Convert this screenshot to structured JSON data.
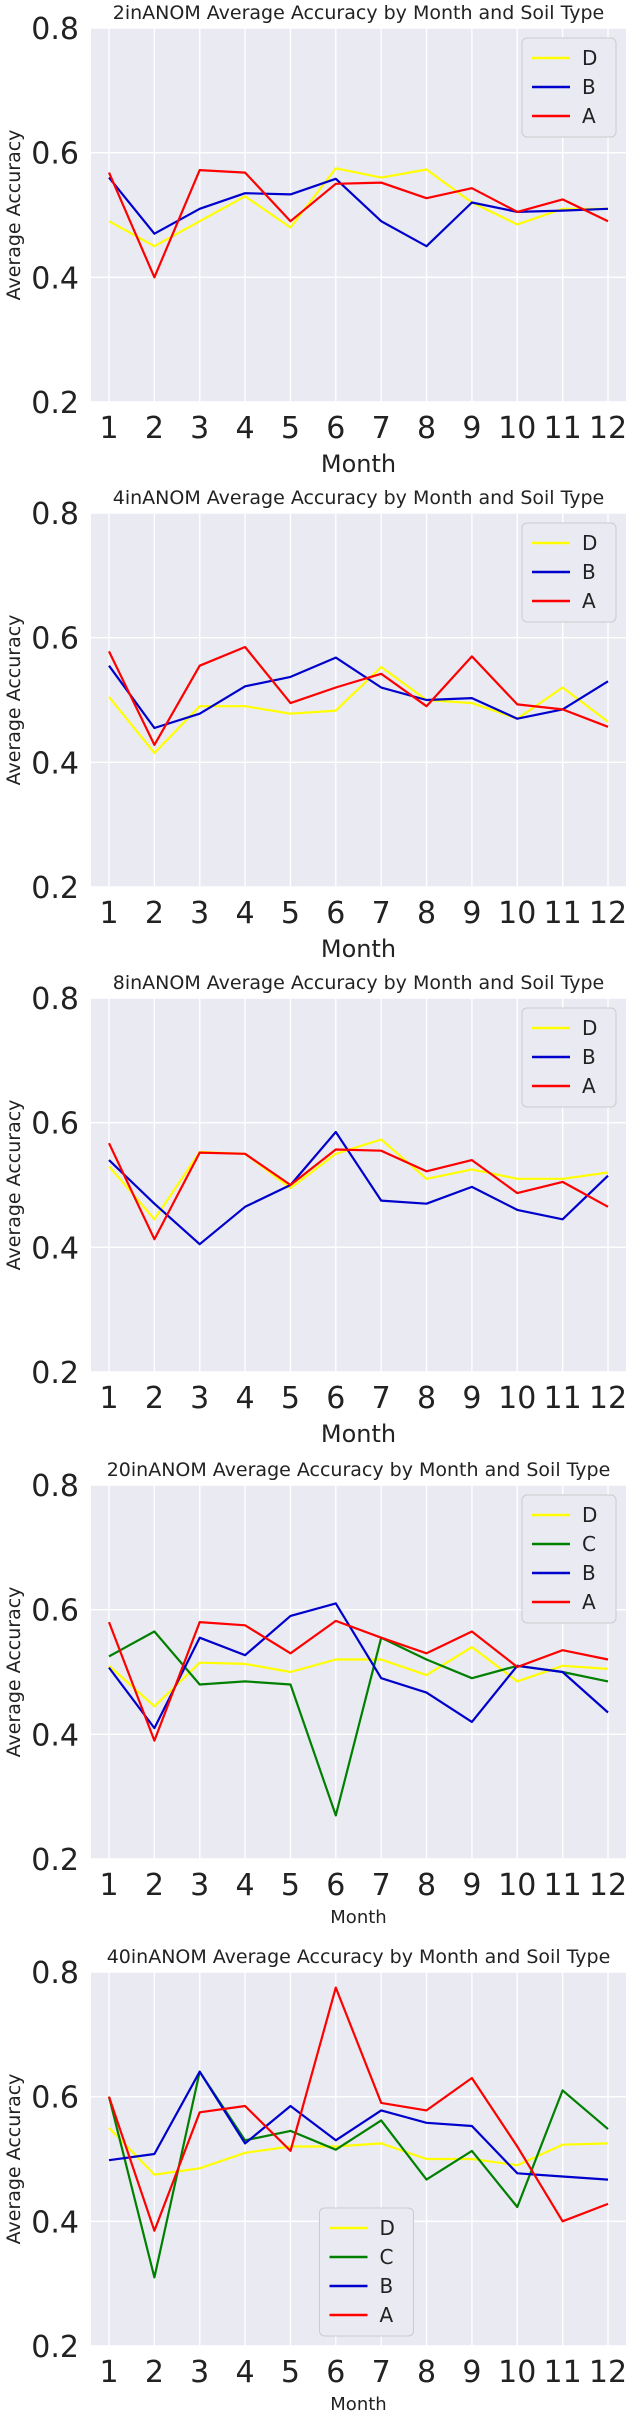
{
  "chart_data": [
    {
      "type": "line",
      "title": "2inANOM Average Accuracy by Month and Soil Type",
      "xlabel": "Month",
      "ylabel": "Average Accuracy",
      "ylim": [
        0.2,
        0.8
      ],
      "yticks": [
        "0.2",
        "0.4",
        "0.6",
        "0.8"
      ],
      "x": [
        1,
        2,
        3,
        4,
        5,
        6,
        7,
        8,
        9,
        10,
        11,
        12
      ],
      "legend_position": "top-right",
      "grid": true,
      "series": [
        {
          "name": "D",
          "color": "#ffff00",
          "values": [
            0.49,
            0.45,
            0.49,
            0.53,
            0.48,
            0.575,
            0.56,
            0.573,
            0.52,
            0.485,
            0.51,
            0.51
          ]
        },
        {
          "name": "B",
          "color": "#0000cc",
          "values": [
            0.56,
            0.47,
            0.51,
            0.535,
            0.533,
            0.558,
            0.49,
            0.45,
            0.52,
            0.505,
            0.507,
            0.51
          ]
        },
        {
          "name": "A",
          "color": "#ff0000",
          "values": [
            0.568,
            0.4,
            0.572,
            0.568,
            0.49,
            0.55,
            0.552,
            0.527,
            0.543,
            0.505,
            0.525,
            0.49
          ]
        }
      ]
    },
    {
      "type": "line",
      "title": "4inANOM Average Accuracy by Month and Soil Type",
      "xlabel": "Month",
      "ylabel": "Average Accuracy",
      "ylim": [
        0.2,
        0.8
      ],
      "yticks": [
        "0.2",
        "0.4",
        "0.6",
        "0.8"
      ],
      "x": [
        1,
        2,
        3,
        4,
        5,
        6,
        7,
        8,
        9,
        10,
        11,
        12
      ],
      "legend_position": "top-right",
      "grid": true,
      "series": [
        {
          "name": "D",
          "color": "#ffff00",
          "values": [
            0.505,
            0.415,
            0.49,
            0.49,
            0.478,
            0.483,
            0.553,
            0.5,
            0.495,
            0.47,
            0.52,
            0.465
          ]
        },
        {
          "name": "B",
          "color": "#0000cc",
          "values": [
            0.555,
            0.455,
            0.478,
            0.522,
            0.537,
            0.568,
            0.52,
            0.5,
            0.503,
            0.47,
            0.485,
            0.53
          ]
        },
        {
          "name": "A",
          "color": "#ff0000",
          "values": [
            0.578,
            0.428,
            0.555,
            0.585,
            0.495,
            0.52,
            0.542,
            0.49,
            0.57,
            0.493,
            0.485,
            0.457
          ]
        }
      ]
    },
    {
      "type": "line",
      "title": "8inANOM Average Accuracy by Month and Soil Type",
      "xlabel": "Month",
      "ylabel": "Average Accuracy",
      "ylim": [
        0.2,
        0.8
      ],
      "yticks": [
        "0.2",
        "0.4",
        "0.6",
        "0.8"
      ],
      "x": [
        1,
        2,
        3,
        4,
        5,
        6,
        7,
        8,
        9,
        10,
        11,
        12
      ],
      "legend_position": "top-right",
      "grid": true,
      "series": [
        {
          "name": "D",
          "color": "#ffff00",
          "values": [
            0.53,
            0.445,
            0.553,
            0.55,
            0.495,
            0.55,
            0.573,
            0.51,
            0.525,
            0.51,
            0.51,
            0.52
          ]
        },
        {
          "name": "B",
          "color": "#0000cc",
          "values": [
            0.54,
            0.47,
            0.405,
            0.465,
            0.5,
            0.585,
            0.475,
            0.47,
            0.497,
            0.46,
            0.445,
            0.515
          ]
        },
        {
          "name": "A",
          "color": "#ff0000",
          "values": [
            0.567,
            0.413,
            0.552,
            0.55,
            0.5,
            0.557,
            0.555,
            0.522,
            0.54,
            0.487,
            0.505,
            0.465
          ]
        }
      ]
    },
    {
      "type": "line",
      "title": "20inANOM Average Accuracy by Month and Soil Type",
      "xlabel": "Month",
      "ylabel": "Average Accuracy",
      "ylim": [
        0.2,
        0.8
      ],
      "yticks": [
        "0.2",
        "0.4",
        "0.6",
        "0.8"
      ],
      "x": [
        1,
        2,
        3,
        4,
        5,
        6,
        7,
        8,
        9,
        10,
        11,
        12
      ],
      "legend_position": "top-right",
      "grid": true,
      "series": [
        {
          "name": "D",
          "color": "#ffff00",
          "values": [
            0.51,
            0.445,
            0.515,
            0.513,
            0.5,
            0.52,
            0.52,
            0.495,
            0.54,
            0.485,
            0.51,
            0.505
          ]
        },
        {
          "name": "C",
          "color": "#008000",
          "values": [
            0.525,
            0.565,
            0.48,
            0.485,
            0.48,
            0.27,
            0.555,
            0.52,
            0.49,
            0.51,
            0.5,
            0.485
          ]
        },
        {
          "name": "B",
          "color": "#0000cc",
          "values": [
            0.507,
            0.41,
            0.555,
            0.527,
            0.59,
            0.61,
            0.49,
            0.467,
            0.42,
            0.51,
            0.5,
            0.435
          ]
        },
        {
          "name": "A",
          "color": "#ff0000",
          "values": [
            0.58,
            0.39,
            0.58,
            0.575,
            0.53,
            0.582,
            0.555,
            0.53,
            0.565,
            0.508,
            0.535,
            0.52
          ]
        }
      ]
    },
    {
      "type": "line",
      "title": "40inANOM Average Accuracy by Month and Soil Type",
      "xlabel": "Month",
      "ylabel": "Average Accuracy",
      "ylim": [
        0.2,
        0.8
      ],
      "yticks": [
        "0.2",
        "0.4",
        "0.6",
        "0.8"
      ],
      "x": [
        1,
        2,
        3,
        4,
        5,
        6,
        7,
        8,
        9,
        10,
        11,
        12
      ],
      "legend_position": "bottom-center",
      "grid": true,
      "series": [
        {
          "name": "D",
          "color": "#ffff00",
          "values": [
            0.55,
            0.475,
            0.485,
            0.51,
            0.52,
            0.52,
            0.525,
            0.5,
            0.5,
            0.49,
            0.523,
            0.525
          ]
        },
        {
          "name": "C",
          "color": "#008000",
          "values": [
            0.6,
            0.31,
            0.64,
            0.53,
            0.545,
            0.515,
            0.562,
            0.467,
            0.513,
            0.423,
            0.61,
            0.548
          ]
        },
        {
          "name": "B",
          "color": "#0000cc",
          "values": [
            0.498,
            0.508,
            0.64,
            0.525,
            0.585,
            0.53,
            0.578,
            0.558,
            0.553,
            0.477,
            0.472,
            0.467
          ]
        },
        {
          "name": "A",
          "color": "#ff0000",
          "values": [
            0.6,
            0.385,
            0.575,
            0.585,
            0.513,
            0.775,
            0.59,
            0.578,
            0.63,
            0.52,
            0.4,
            0.428
          ]
        }
      ]
    }
  ]
}
